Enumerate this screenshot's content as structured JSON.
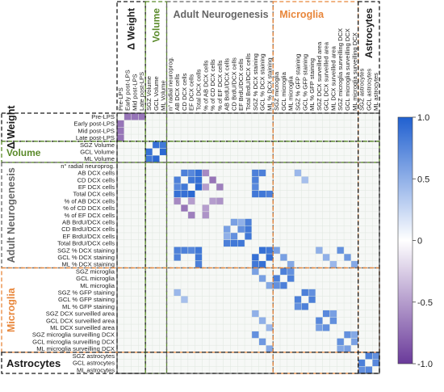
{
  "chart_data": {
    "type": "heatmap",
    "variables": [
      "Pre-LPS",
      "Early post-LPS",
      "Mid post-LPS",
      "Late post-LPS",
      "SGZ Volume",
      "GCL Volume",
      "ML Volume",
      "n° radial neuroprog.",
      "AB DCX cells",
      "CD DCX cells",
      "EF DCX cells",
      "Total DCX cells",
      "% of AB DCX cells",
      "% of CD DCX cells",
      "% of EF DCX cells",
      "AB BrdU/DCX cells",
      "CD BrdU/DCX cells",
      "EF BrdU/DCX cells",
      "Total BrdU/DCX cells",
      "SGZ % DCX staining",
      "GCL % DCX staining",
      "ML % DCX staining",
      "SGZ microglia",
      "GCL microglia",
      "ML microglia",
      "SGZ % GFP staining",
      "GCL % GFP staining",
      "ML % GFP staining",
      "SGZ DCX surveilled area",
      "GCL DCX surveilled area",
      "ML DCX surveilled area",
      "SGZ microglia surveilling DCX",
      "GCL microglia surveilling DCX",
      "ML microglia surveilling DCX",
      "SGZ astrocytes",
      "GCL astrocytes",
      "ML astrocytes"
    ],
    "groups": [
      {
        "label": "Δ Weight",
        "start": 0,
        "end": 3,
        "color": "#1a1a1a"
      },
      {
        "label": "Volume",
        "start": 4,
        "end": 6,
        "color": "#5a8a2a"
      },
      {
        "label": "Adult Neurogenesis",
        "start": 7,
        "end": 21,
        "color": "#666666"
      },
      {
        "label": "Microglia",
        "start": 22,
        "end": 33,
        "color": "#e8863a"
      },
      {
        "label": "Astrocytes",
        "start": 34,
        "end": 36,
        "color": "#1a1a1a"
      }
    ],
    "correlations": [
      [
        1,
        0,
        1,
        -0.7
      ],
      [
        2,
        0,
        1,
        -0.7
      ],
      [
        3,
        0,
        1,
        -0.7
      ],
      [
        5,
        4,
        1,
        0.9
      ],
      [
        6,
        4,
        1,
        0.85
      ],
      [
        6,
        5,
        1,
        0.95
      ],
      [
        9,
        8,
        0.8
      ],
      [
        10,
        8,
        0.75
      ],
      [
        10,
        9,
        0.85
      ],
      [
        11,
        8,
        0.9
      ],
      [
        11,
        9,
        0.9
      ],
      [
        11,
        10,
        0.95
      ],
      [
        12,
        8,
        -0.6
      ],
      [
        12,
        10,
        -0.5
      ],
      [
        13,
        9,
        -0.7
      ],
      [
        13,
        12,
        -0.5
      ],
      [
        14,
        10,
        -0.65
      ],
      [
        14,
        12,
        -0.55
      ],
      [
        16,
        15,
        0.6
      ],
      [
        17,
        15,
        0.5
      ],
      [
        17,
        16,
        0.7
      ],
      [
        18,
        15,
        0.8
      ],
      [
        18,
        16,
        0.85
      ],
      [
        18,
        17,
        0.85
      ],
      [
        20,
        19,
        0.9
      ],
      [
        21,
        19,
        0.85
      ],
      [
        21,
        20,
        0.9
      ],
      [
        19,
        8,
        0.8
      ],
      [
        19,
        9,
        0.8
      ],
      [
        19,
        10,
        0.75
      ],
      [
        19,
        11,
        0.85
      ],
      [
        20,
        8,
        0.8
      ],
      [
        20,
        11,
        0.85
      ],
      [
        21,
        11,
        0.8
      ],
      [
        23,
        22,
        0.8
      ],
      [
        24,
        22,
        0.7
      ],
      [
        24,
        23,
        0.8
      ],
      [
        26,
        25,
        0.8
      ],
      [
        27,
        25,
        0.7
      ],
      [
        27,
        26,
        0.8
      ],
      [
        29,
        28,
        0.75
      ],
      [
        30,
        28,
        0.6
      ],
      [
        30,
        29,
        0.7
      ],
      [
        32,
        31,
        0.7
      ],
      [
        33,
        31,
        0.55
      ],
      [
        33,
        32,
        0.6
      ],
      [
        35,
        34,
        0.8
      ],
      [
        36,
        34,
        0.7
      ],
      [
        36,
        35,
        0.75
      ],
      [
        22,
        19,
        0.6
      ],
      [
        23,
        20,
        0.6
      ],
      [
        24,
        21,
        0.55
      ],
      [
        31,
        19,
        0.7
      ],
      [
        32,
        20,
        0.65
      ],
      [
        33,
        21,
        0.55
      ],
      [
        25,
        8,
        0.45
      ],
      [
        26,
        9,
        0.4
      ],
      [
        28,
        19,
        0.5
      ],
      [
        29,
        20,
        0.5
      ],
      [
        30,
        21,
        0.45
      ]
    ],
    "colorbar": {
      "ticks": [
        "1.0",
        "0.5",
        "0",
        "-0.5",
        "-1.0"
      ],
      "min": -1,
      "max": 1,
      "colors": {
        "neg": "#6a3a9a",
        "mid": "#ffffff",
        "pos": "#2060d0"
      }
    }
  }
}
